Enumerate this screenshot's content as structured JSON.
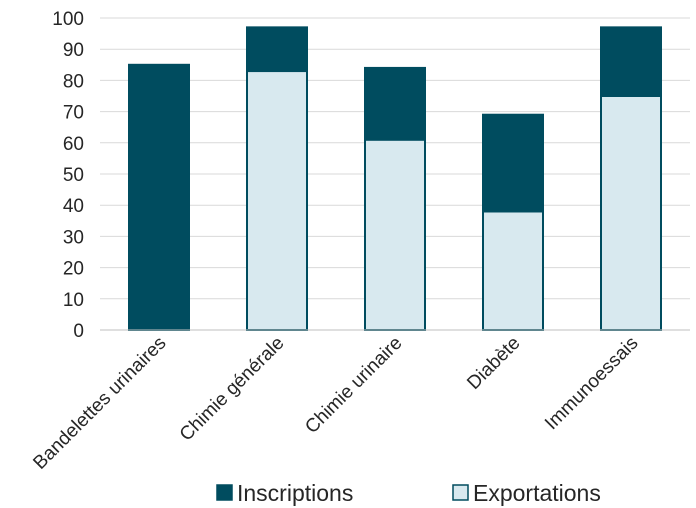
{
  "chart_data": {
    "type": "bar",
    "stacked": true,
    "categories": [
      "Bandelettes urinaires",
      "Chimie générale",
      "Chimie urinaire",
      "Diabète",
      "Immunoessais"
    ],
    "series": [
      {
        "name": "Exportations",
        "values": [
          0,
          83,
          61,
          38,
          75
        ],
        "color": "#d8e9ef"
      },
      {
        "name": "Inscriptions",
        "values": [
          85,
          14,
          23,
          31,
          22
        ],
        "color": "#004c5f"
      }
    ],
    "y_ticks": [
      0,
      10,
      20,
      30,
      40,
      50,
      60,
      70,
      80,
      90,
      100
    ],
    "ylim": [
      0,
      100
    ],
    "grid": true,
    "legend_order": [
      "Inscriptions",
      "Exportations"
    ],
    "legend_position": "bottom",
    "title": "",
    "xlabel": "",
    "ylabel": ""
  }
}
